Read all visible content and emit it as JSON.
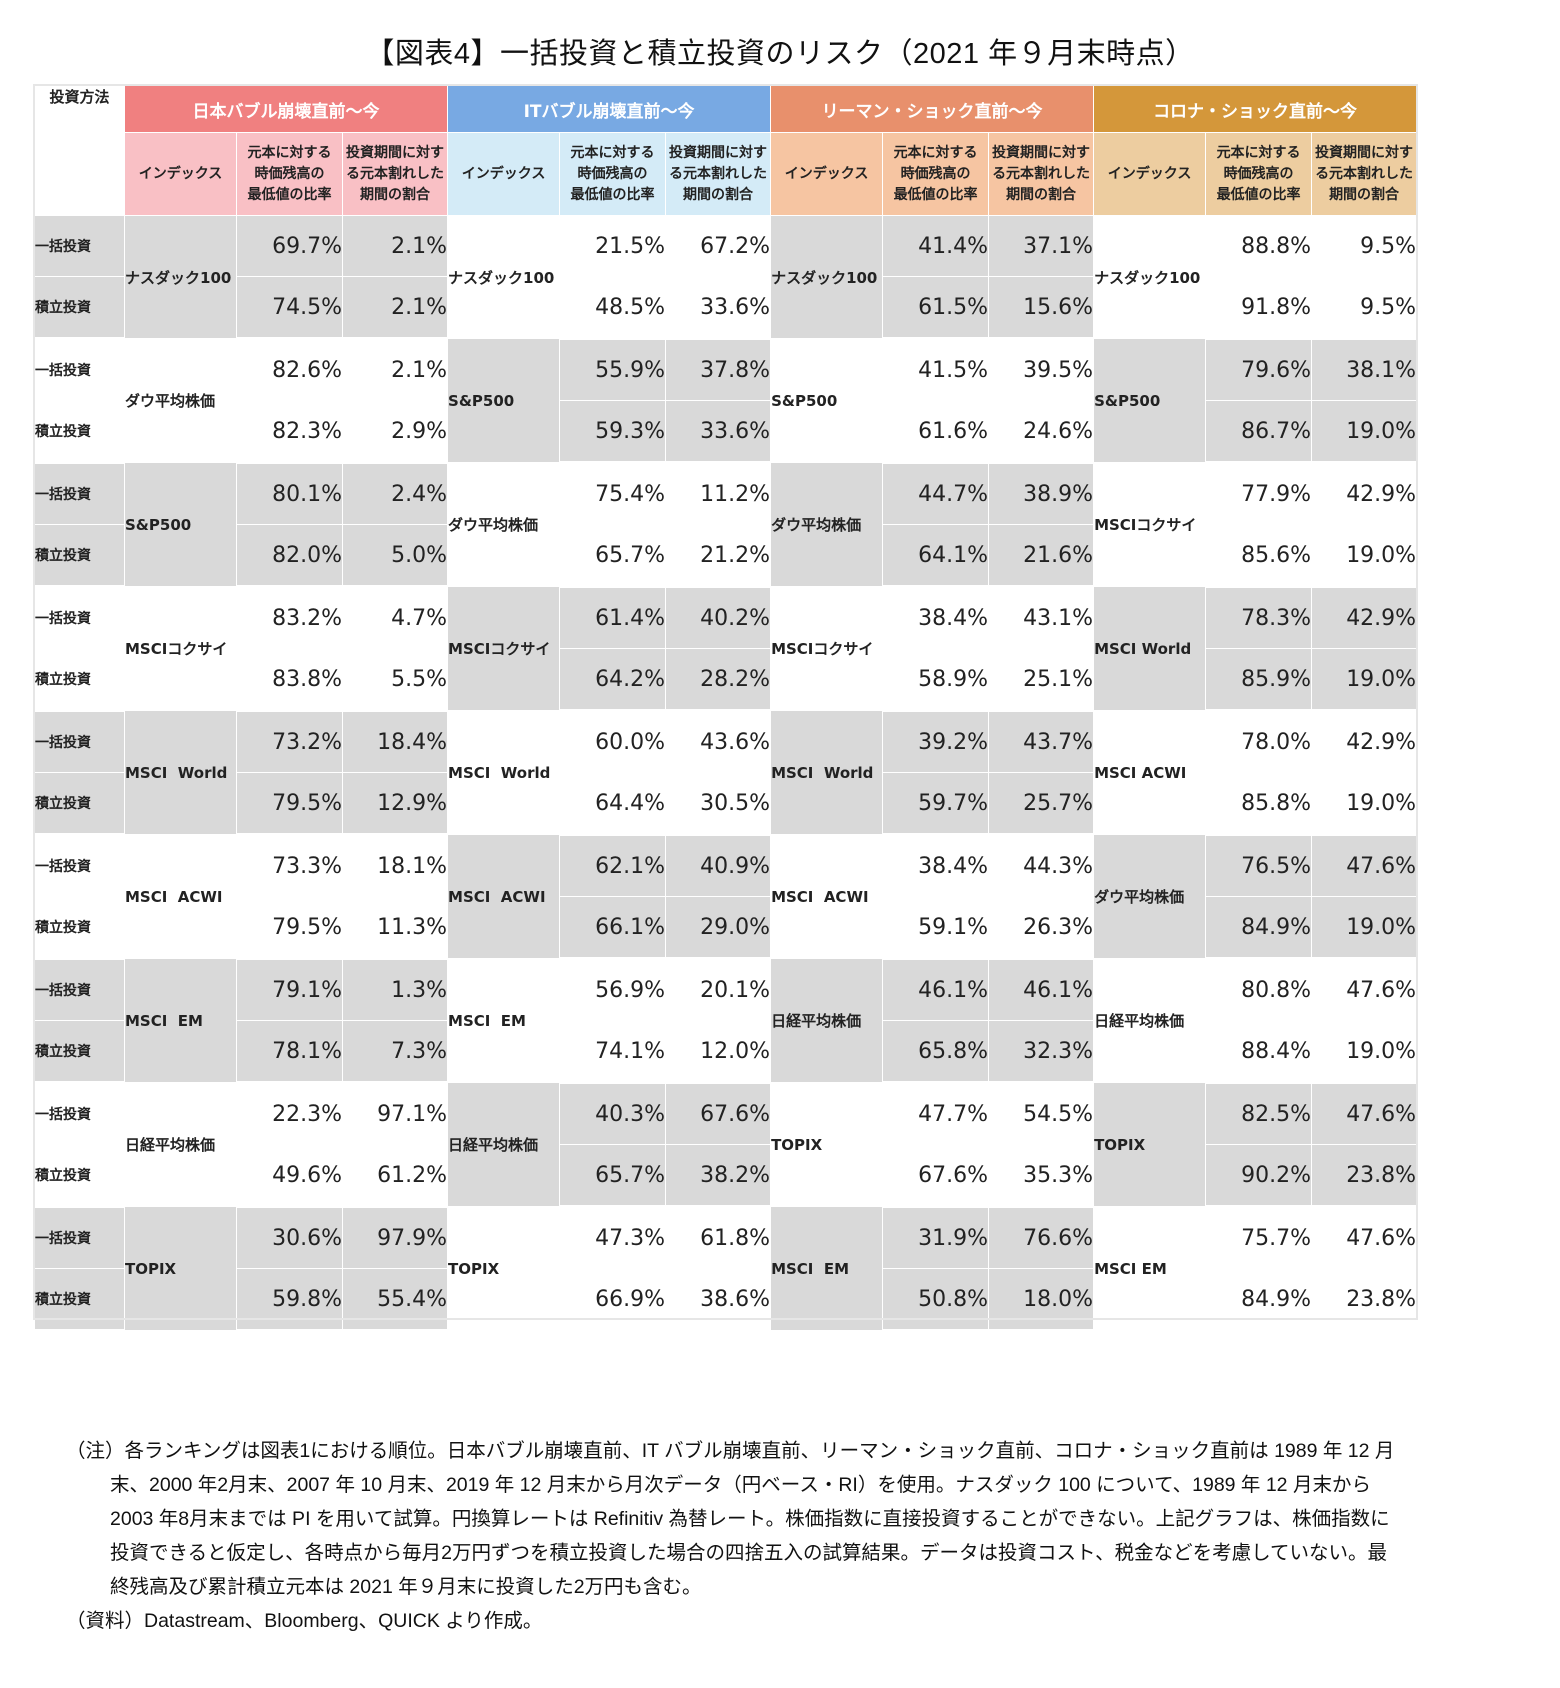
{
  "title": "【図表4】一括投資と積立投資のリスク（2021 年９月末時点）",
  "header": {
    "method_label": "投資方法",
    "groups": [
      {
        "label": "日本バブル崩壊直前～今",
        "color": "#f08080",
        "sub_color": "#f9c0c5"
      },
      {
        "label": "ITバブル崩壊直前～今",
        "color": "#78a9e3",
        "sub_color": "#d4ebf7"
      },
      {
        "label": "リーマン・ショック直前～今",
        "color": "#e8906c",
        "sub_color": "#f6c5a2"
      },
      {
        "label": "コロナ・ショック直前～今",
        "color": "#d4973a",
        "sub_color": "#edcda0"
      }
    ],
    "subcolumns": {
      "index": "インデックス",
      "min_ratio": [
        "元本に対する",
        "時価残高の",
        "最低値の比率"
      ],
      "loss_period": [
        "投資期間に対す",
        "る元本割れした",
        "期間の割合"
      ]
    }
  },
  "methods": [
    "一括投資",
    "積立投資"
  ],
  "colors": {
    "shade": "#d9d9d9",
    "white": "#ffffff"
  },
  "chart_data": {
    "type": "table",
    "title": "【図表4】一括投資と積立投資のリスク（2021 年９月末時点）",
    "columns": [
      "投資方法",
      "インデックス",
      "元本に対する時価残高の最低値の比率",
      "投資期間に対する元本割れした期間の割合"
    ],
    "groups": [
      {
        "period": "日本バブル崩壊直前～今",
        "rows": [
          {
            "index": "ナスダック100",
            "lump": [
              "69.7%",
              "2.1%"
            ],
            "dca": [
              "74.5%",
              "2.1%"
            ]
          },
          {
            "index": "ダウ平均株価",
            "lump": [
              "82.6%",
              "2.1%"
            ],
            "dca": [
              "82.3%",
              "2.9%"
            ]
          },
          {
            "index": "S&P500",
            "lump": [
              "80.1%",
              "2.4%"
            ],
            "dca": [
              "82.0%",
              "5.0%"
            ]
          },
          {
            "index": "MSCIコクサイ",
            "lump": [
              "83.2%",
              "4.7%"
            ],
            "dca": [
              "83.8%",
              "5.5%"
            ]
          },
          {
            "index": "MSCI  World",
            "lump": [
              "73.2%",
              "18.4%"
            ],
            "dca": [
              "79.5%",
              "12.9%"
            ]
          },
          {
            "index": "MSCI  ACWI",
            "lump": [
              "73.3%",
              "18.1%"
            ],
            "dca": [
              "79.5%",
              "11.3%"
            ]
          },
          {
            "index": "MSCI  EM",
            "lump": [
              "79.1%",
              "1.3%"
            ],
            "dca": [
              "78.1%",
              "7.3%"
            ]
          },
          {
            "index": "日経平均株価",
            "lump": [
              "22.3%",
              "97.1%"
            ],
            "dca": [
              "49.6%",
              "61.2%"
            ]
          },
          {
            "index": "TOPIX",
            "lump": [
              "30.6%",
              "97.9%"
            ],
            "dca": [
              "59.8%",
              "55.4%"
            ]
          }
        ]
      },
      {
        "period": "ITバブル崩壊直前～今",
        "rows": [
          {
            "index": "ナスダック100",
            "lump": [
              "21.5%",
              "67.2%"
            ],
            "dca": [
              "48.5%",
              "33.6%"
            ]
          },
          {
            "index": "S&P500",
            "lump": [
              "55.9%",
              "37.8%"
            ],
            "dca": [
              "59.3%",
              "33.6%"
            ]
          },
          {
            "index": "ダウ平均株価",
            "lump": [
              "75.4%",
              "11.2%"
            ],
            "dca": [
              "65.7%",
              "21.2%"
            ]
          },
          {
            "index": "MSCIコクサイ",
            "lump": [
              "61.4%",
              "40.2%"
            ],
            "dca": [
              "64.2%",
              "28.2%"
            ]
          },
          {
            "index": "MSCI  World",
            "lump": [
              "60.0%",
              "43.6%"
            ],
            "dca": [
              "64.4%",
              "30.5%"
            ]
          },
          {
            "index": "MSCI  ACWI",
            "lump": [
              "62.1%",
              "40.9%"
            ],
            "dca": [
              "66.1%",
              "29.0%"
            ]
          },
          {
            "index": "MSCI  EM",
            "lump": [
              "56.9%",
              "20.1%"
            ],
            "dca": [
              "74.1%",
              "12.0%"
            ]
          },
          {
            "index": "日経平均株価",
            "lump": [
              "40.3%",
              "67.6%"
            ],
            "dca": [
              "65.7%",
              "38.2%"
            ]
          },
          {
            "index": "TOPIX",
            "lump": [
              "47.3%",
              "61.8%"
            ],
            "dca": [
              "66.9%",
              "38.6%"
            ]
          }
        ]
      },
      {
        "period": "リーマン・ショック直前～今",
        "rows": [
          {
            "index": "ナスダック100",
            "lump": [
              "41.4%",
              "37.1%"
            ],
            "dca": [
              "61.5%",
              "15.6%"
            ]
          },
          {
            "index": "S&P500",
            "lump": [
              "41.5%",
              "39.5%"
            ],
            "dca": [
              "61.6%",
              "24.6%"
            ]
          },
          {
            "index": "ダウ平均株価",
            "lump": [
              "44.7%",
              "38.9%"
            ],
            "dca": [
              "64.1%",
              "21.6%"
            ]
          },
          {
            "index": "MSCIコクサイ",
            "lump": [
              "38.4%",
              "43.1%"
            ],
            "dca": [
              "58.9%",
              "25.1%"
            ]
          },
          {
            "index": "MSCI  World",
            "lump": [
              "39.2%",
              "43.7%"
            ],
            "dca": [
              "59.7%",
              "25.7%"
            ]
          },
          {
            "index": "MSCI  ACWI",
            "lump": [
              "38.4%",
              "44.3%"
            ],
            "dca": [
              "59.1%",
              "26.3%"
            ]
          },
          {
            "index": "日経平均株価",
            "lump": [
              "46.1%",
              "46.1%"
            ],
            "dca": [
              "65.8%",
              "32.3%"
            ]
          },
          {
            "index": "TOPIX",
            "lump": [
              "47.7%",
              "54.5%"
            ],
            "dca": [
              "67.6%",
              "35.3%"
            ]
          },
          {
            "index": "MSCI  EM",
            "lump": [
              "31.9%",
              "76.6%"
            ],
            "dca": [
              "50.8%",
              "18.0%"
            ]
          }
        ]
      },
      {
        "period": "コロナ・ショック直前～今",
        "rows": [
          {
            "index": "ナスダック100",
            "lump": [
              "88.8%",
              "9.5%"
            ],
            "dca": [
              "91.8%",
              "9.5%"
            ]
          },
          {
            "index": "S&P500",
            "lump": [
              "79.6%",
              "38.1%"
            ],
            "dca": [
              "86.7%",
              "19.0%"
            ]
          },
          {
            "index": "MSCIコクサイ",
            "lump": [
              "77.9%",
              "42.9%"
            ],
            "dca": [
              "85.6%",
              "19.0%"
            ]
          },
          {
            "index": "MSCI World",
            "lump": [
              "78.3%",
              "42.9%"
            ],
            "dca": [
              "85.9%",
              "19.0%"
            ]
          },
          {
            "index": "MSCI ACWI",
            "lump": [
              "78.0%",
              "42.9%"
            ],
            "dca": [
              "85.8%",
              "19.0%"
            ]
          },
          {
            "index": "ダウ平均株価",
            "lump": [
              "76.5%",
              "47.6%"
            ],
            "dca": [
              "84.9%",
              "19.0%"
            ]
          },
          {
            "index": "日経平均株価",
            "lump": [
              "80.8%",
              "47.6%"
            ],
            "dca": [
              "88.4%",
              "19.0%"
            ]
          },
          {
            "index": "TOPIX",
            "lump": [
              "82.5%",
              "47.6%"
            ],
            "dca": [
              "90.2%",
              "23.8%"
            ]
          },
          {
            "index": "MSCI EM",
            "lump": [
              "75.7%",
              "47.6%"
            ],
            "dca": [
              "84.9%",
              "23.8%"
            ]
          }
        ]
      }
    ]
  },
  "notes": {
    "note": "（注）各ランキングは図表1における順位。日本バブル崩壊直前、IT バブル崩壊直前、リーマン・ショック直前、コロナ・ショック直前は 1989 年 12 月末、2000 年2月末、2007 年 10 月末、2019 年 12 月末から月次データ（円ベース・RI）を使用。ナスダック 100 について、1989 年 12 月末から 2003 年8月末までは PI を用いて試算。円換算レートは Refinitiv 為替レート。株価指数に直接投資することができない。上記グラフは、株価指数に投資できると仮定し、各時点から毎月2万円ずつを積立投資した場合の四捨五入の試算結果。データは投資コスト、税金などを考慮していない。最終残高及び累計積立元本は 2021 年９月末に投資した2万円も含む。",
    "source": "（資料）Datastream、Bloomberg、QUICK より作成。"
  }
}
